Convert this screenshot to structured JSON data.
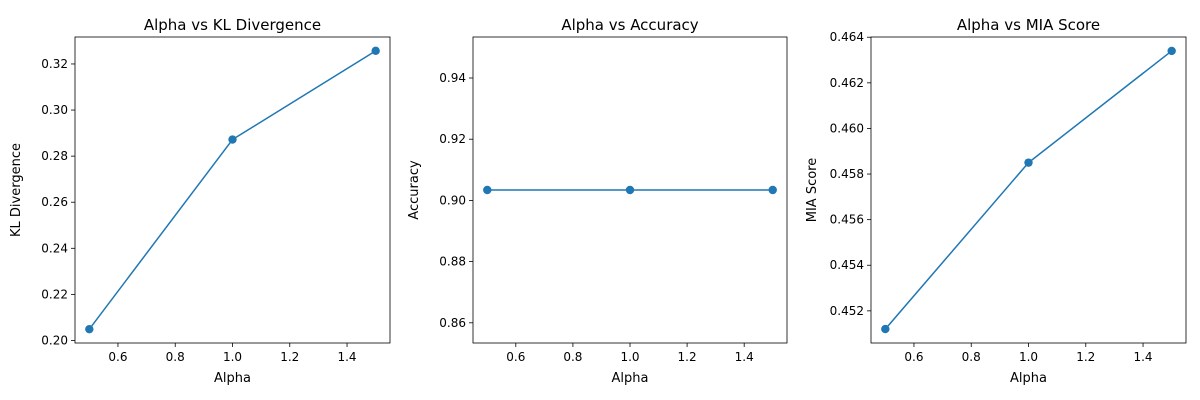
{
  "chart_data": [
    {
      "type": "line",
      "title": "Alpha vs KL Divergence",
      "xlabel": "Alpha",
      "ylabel": "KL Divergence",
      "x": [
        0.5,
        1.0,
        1.5
      ],
      "series": [
        {
          "values": [
            0.2049,
            0.2872,
            0.3257
          ]
        }
      ],
      "xlim": [
        0.45,
        1.55
      ],
      "ylim": [
        0.1989,
        0.3317
      ],
      "xticks": [
        0.6,
        0.8,
        1.0,
        1.2,
        1.4
      ],
      "xticklabels": [
        "0.6",
        "0.8",
        "1.0",
        "1.2",
        "1.4"
      ],
      "yticks": [
        0.2,
        0.22,
        0.24,
        0.26,
        0.28,
        0.3,
        0.32
      ],
      "yticklabels": [
        "0.20",
        "0.22",
        "0.24",
        "0.26",
        "0.28",
        "0.30",
        "0.32"
      ],
      "marker": "circle",
      "color": "#1f77b4",
      "grid": false
    },
    {
      "type": "line",
      "title": "Alpha vs Accuracy",
      "xlabel": "Alpha",
      "ylabel": "Accuracy",
      "x": [
        0.5,
        1.0,
        1.5
      ],
      "series": [
        {
          "values": [
            0.9034,
            0.9034,
            0.9034
          ]
        }
      ],
      "xlim": [
        0.45,
        1.55
      ],
      "ylim": [
        0.8534,
        0.9534
      ],
      "xticks": [
        0.6,
        0.8,
        1.0,
        1.2,
        1.4
      ],
      "xticklabels": [
        "0.6",
        "0.8",
        "1.0",
        "1.2",
        "1.4"
      ],
      "yticks": [
        0.86,
        0.88,
        0.9,
        0.92,
        0.94
      ],
      "yticklabels": [
        "0.86",
        "0.88",
        "0.90",
        "0.92",
        "0.94"
      ],
      "marker": "circle",
      "color": "#1f77b4",
      "grid": false
    },
    {
      "type": "line",
      "title": "Alpha vs MIA Score",
      "xlabel": "Alpha",
      "ylabel": "MIA Score",
      "x": [
        0.5,
        1.0,
        1.5
      ],
      "series": [
        {
          "values": [
            0.4512,
            0.4585,
            0.4634
          ]
        }
      ],
      "xlim": [
        0.45,
        1.55
      ],
      "ylim": [
        0.45059,
        0.46401
      ],
      "xticks": [
        0.6,
        0.8,
        1.0,
        1.2,
        1.4
      ],
      "xticklabels": [
        "0.6",
        "0.8",
        "1.0",
        "1.2",
        "1.4"
      ],
      "yticks": [
        0.452,
        0.454,
        0.456,
        0.458,
        0.46,
        0.462,
        0.464
      ],
      "yticklabels": [
        "0.452",
        "0.454",
        "0.456",
        "0.458",
        "0.460",
        "0.462",
        "0.464"
      ],
      "marker": "circle",
      "color": "#1f77b4",
      "grid": false
    }
  ]
}
